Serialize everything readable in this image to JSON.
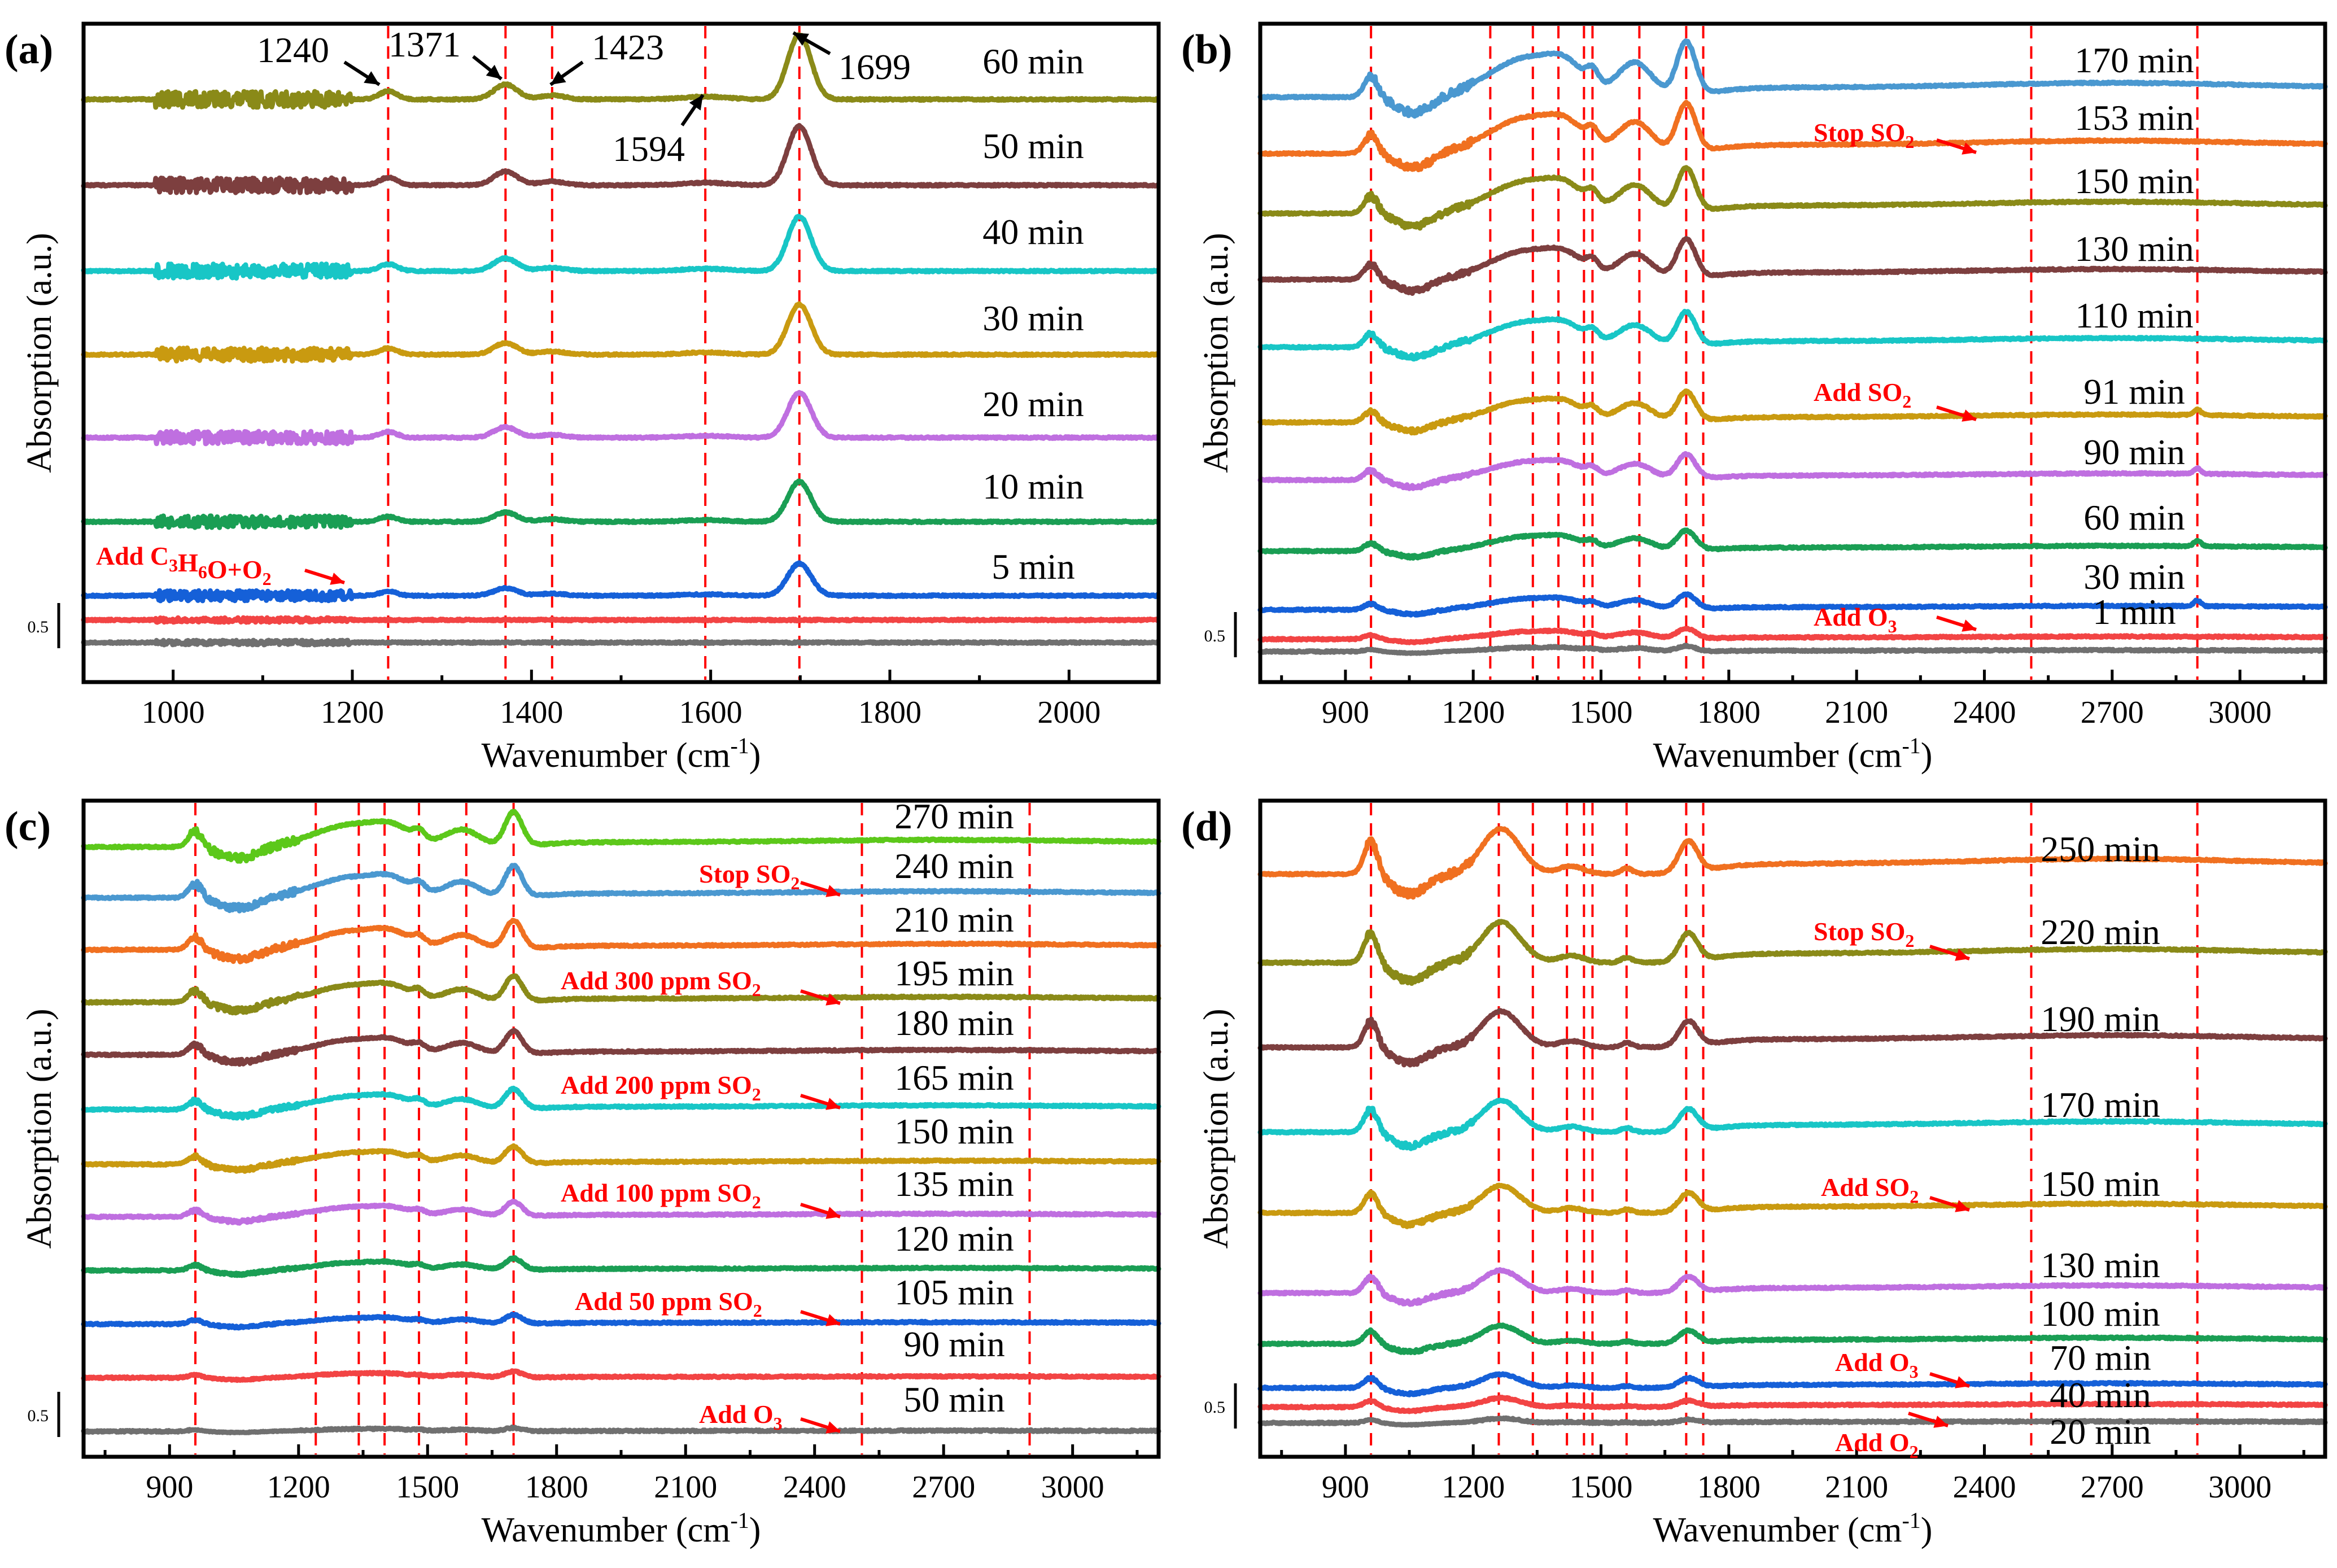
{
  "chart_data": [
    {
      "type": "line",
      "panel_label": "(a)",
      "xlabel": "Wavenumber (cm",
      "xlabel_sup": "-1",
      "xlabel_end": ")",
      "ylabel": "Absorption (a.u.)",
      "xlim": [
        900,
        2100
      ],
      "xticks": [
        1000,
        1200,
        1400,
        1600,
        1800,
        2000
      ],
      "scale_bar": "0.5",
      "dashed_lines": [
        1240,
        1371,
        1423,
        1594,
        1699
      ],
      "peak_annotations": [
        {
          "text": "1240",
          "x": 1240
        },
        {
          "text": "1371",
          "x": 1371
        },
        {
          "text": "1423",
          "x": 1423
        },
        {
          "text": "1594",
          "x": 1594
        },
        {
          "text": "1699",
          "x": 1699
        }
      ],
      "peaks": [
        {
          "center": 1240,
          "width": 10,
          "height": 0.12
        },
        {
          "center": 1371,
          "width": 13,
          "height": 0.22
        },
        {
          "center": 1423,
          "width": 14,
          "height": 0.06
        },
        {
          "center": 1594,
          "width": 25,
          "height": 0.04
        },
        {
          "center": 1699,
          "width": 13,
          "height": 0.95
        }
      ],
      "noise_region": [
        980,
        1200
      ],
      "series": [
        {
          "name": "60 min",
          "color": "#8a8a18",
          "offset": 8.2,
          "amp": 1.0,
          "labeled": true
        },
        {
          "name": "50 min",
          "color": "#7d3f3f",
          "offset": 7.0,
          "amp": 0.92,
          "labeled": true
        },
        {
          "name": "40 min",
          "color": "#18c6c6",
          "offset": 5.8,
          "amp": 0.85,
          "labeled": true
        },
        {
          "name": "30 min",
          "color": "#c99a10",
          "offset": 4.6,
          "amp": 0.78,
          "labeled": true
        },
        {
          "name": "20 min",
          "color": "#bf6fe0",
          "offset": 3.45,
          "amp": 0.7,
          "labeled": true
        },
        {
          "name": "10 min",
          "color": "#1a9e54",
          "offset": 2.25,
          "amp": 0.62,
          "labeled": true
        },
        {
          "name": "5 min",
          "color": "#1560d8",
          "offset": 1.05,
          "amp": 0.5,
          "labeled": true
        },
        {
          "name": "",
          "color": "#f24444",
          "offset": 0.7,
          "amp": 0.0,
          "labeled": false
        },
        {
          "name": "",
          "color": "#707070",
          "offset": 0.35,
          "amp": 0.0,
          "labeled": false
        }
      ],
      "events": [
        {
          "text": "Add C3H6O+O2",
          "parts": [
            [
              "Add C",
              false
            ],
            [
              "3",
              true
            ],
            [
              "H",
              false
            ],
            [
              "6",
              true
            ],
            [
              "O+O",
              false
            ],
            [
              "2",
              true
            ]
          ],
          "after_series": "5 min"
        }
      ]
    },
    {
      "type": "line",
      "panel_label": "(b)",
      "xlabel": "Wavenumber (cm",
      "xlabel_sup": "-1",
      "xlabel_end": ")",
      "ylabel": "Absorption (a.u.)",
      "xlim": [
        700,
        3200
      ],
      "xticks": [
        900,
        1200,
        1500,
        1800,
        2100,
        2400,
        2700,
        3000
      ],
      "scale_bar": "0.5",
      "dashed_lines": [
        960,
        1240,
        1340,
        1400,
        1460,
        1480,
        1590,
        1700,
        1740,
        2510,
        2900
      ],
      "series": [
        {
          "name": "170 min",
          "color": "#4a98d0",
          "labeled": true
        },
        {
          "name": "153 min",
          "color": "#f07020",
          "labeled": true
        },
        {
          "name": "150 min",
          "color": "#8a8a18",
          "labeled": true
        },
        {
          "name": "130 min",
          "color": "#7d3f3f",
          "labeled": true
        },
        {
          "name": "110 min",
          "color": "#18c6c6",
          "labeled": true
        },
        {
          "name": "91 min",
          "color": "#c99a10",
          "labeled": true
        },
        {
          "name": "90 min",
          "color": "#bf6fe0",
          "labeled": true
        },
        {
          "name": "60 min",
          "color": "#1a9e54",
          "labeled": true
        },
        {
          "name": "30 min",
          "color": "#1560d8",
          "labeled": true
        },
        {
          "name": "1 min",
          "color": "#f24444",
          "labeled": true
        },
        {
          "name": "",
          "color": "#707070",
          "labeled": false
        }
      ],
      "events": [
        {
          "text": "Stop SO2",
          "parts": [
            [
              "Stop SO",
              false
            ],
            [
              "2",
              true
            ]
          ],
          "after_series": "153 min"
        },
        {
          "text": "Add SO2",
          "parts": [
            [
              "Add SO",
              false
            ],
            [
              "2",
              true
            ]
          ],
          "after_series": "91 min"
        },
        {
          "text": "Add O3",
          "parts": [
            [
              "Add O",
              false
            ],
            [
              "3",
              true
            ]
          ],
          "after_series": "1 min"
        }
      ]
    },
    {
      "type": "line",
      "panel_label": "(c)",
      "xlabel": "Wavenumber (cm",
      "xlabel_sup": "-1",
      "xlabel_end": ")",
      "ylabel": "Absorption (a.u.)",
      "xlim": [
        700,
        3200
      ],
      "xticks": [
        900,
        1200,
        1500,
        1800,
        2100,
        2400,
        2700,
        3000
      ],
      "scale_bar": "0.5",
      "dashed_lines": [
        960,
        1240,
        1340,
        1400,
        1480,
        1590,
        1700,
        2510,
        2900
      ],
      "series": [
        {
          "name": "270 min",
          "color": "#5cc81a",
          "labeled": true
        },
        {
          "name": "240 min",
          "color": "#4a98d0",
          "labeled": true
        },
        {
          "name": "210 min",
          "color": "#f07020",
          "labeled": true
        },
        {
          "name": "195 min",
          "color": "#8a8a18",
          "labeled": true
        },
        {
          "name": "180 min",
          "color": "#7d3f3f",
          "labeled": true
        },
        {
          "name": "165 min",
          "color": "#18c6c6",
          "labeled": true
        },
        {
          "name": "150 min",
          "color": "#c99a10",
          "labeled": true
        },
        {
          "name": "135 min",
          "color": "#bf6fe0",
          "labeled": true
        },
        {
          "name": "120 min",
          "color": "#1a9e54",
          "labeled": true
        },
        {
          "name": "105 min",
          "color": "#1560d8",
          "labeled": true
        },
        {
          "name": "90 min",
          "color": "#f24444",
          "labeled": true
        },
        {
          "name": "50 min",
          "color": "#707070",
          "labeled": true
        }
      ],
      "events": [
        {
          "text": "Stop SO2",
          "parts": [
            [
              "Stop SO",
              false
            ],
            [
              "2",
              true
            ]
          ],
          "after_series": "240 min"
        },
        {
          "text": "Add 300 ppm SO2",
          "parts": [
            [
              "Add 300 ppm SO",
              false
            ],
            [
              "2",
              true
            ]
          ],
          "after_series": "195 min"
        },
        {
          "text": "Add 200 ppm SO2",
          "parts": [
            [
              "Add 200 ppm SO",
              false
            ],
            [
              "2",
              true
            ]
          ],
          "after_series": "165 min"
        },
        {
          "text": "Add 100 ppm SO2",
          "parts": [
            [
              "Add 100 ppm SO",
              false
            ],
            [
              "2",
              true
            ]
          ],
          "after_series": "135 min"
        },
        {
          "text": "Add 50 ppm SO2",
          "parts": [
            [
              "Add 50 ppm SO",
              false
            ],
            [
              "2",
              true
            ]
          ],
          "after_series": "105 min"
        },
        {
          "text": "Add O3",
          "parts": [
            [
              "Add O",
              false
            ],
            [
              "3",
              true
            ]
          ],
          "after_series": "50 min"
        }
      ]
    },
    {
      "type": "line",
      "panel_label": "(d)",
      "xlabel": "Wavenumber (cm",
      "xlabel_sup": "-1",
      "xlabel_end": ")",
      "ylabel": "Absorption (a.u.)",
      "xlim": [
        700,
        3200
      ],
      "xticks": [
        900,
        1200,
        1500,
        1800,
        2100,
        2400,
        2700,
        3000
      ],
      "scale_bar": "0.5",
      "dashed_lines": [
        960,
        1260,
        1340,
        1420,
        1460,
        1480,
        1560,
        1700,
        1740,
        2510,
        2900
      ],
      "series": [
        {
          "name": "250 min",
          "color": "#f07020",
          "labeled": true
        },
        {
          "name": "220 min",
          "color": "#8a8a18",
          "labeled": true
        },
        {
          "name": "190 min",
          "color": "#7d3f3f",
          "labeled": true
        },
        {
          "name": "170 min",
          "color": "#18c6c6",
          "labeled": true
        },
        {
          "name": "150 min",
          "color": "#c99a10",
          "labeled": true
        },
        {
          "name": "130 min",
          "color": "#bf6fe0",
          "labeled": true
        },
        {
          "name": "100 min",
          "color": "#1a9e54",
          "labeled": true
        },
        {
          "name": "70 min",
          "color": "#1560d8",
          "labeled": true
        },
        {
          "name": "40 min",
          "color": "#f24444",
          "labeled": true
        },
        {
          "name": "20 min",
          "color": "#707070",
          "labeled": true
        }
      ],
      "events": [
        {
          "text": "Stop SO2",
          "parts": [
            [
              "Stop SO",
              false
            ],
            [
              "2",
              true
            ]
          ],
          "after_series": "220 min"
        },
        {
          "text": "Add SO2",
          "parts": [
            [
              "Add SO",
              false
            ],
            [
              "2",
              true
            ]
          ],
          "after_series": "150 min"
        },
        {
          "text": "Add O3",
          "parts": [
            [
              "Add O",
              false
            ],
            [
              "3",
              true
            ]
          ],
          "after_series": "70 min"
        },
        {
          "text": "Add O2",
          "parts": [
            [
              "Add O",
              false
            ],
            [
              "2",
              true
            ]
          ],
          "after_series": "20 min"
        }
      ]
    }
  ]
}
